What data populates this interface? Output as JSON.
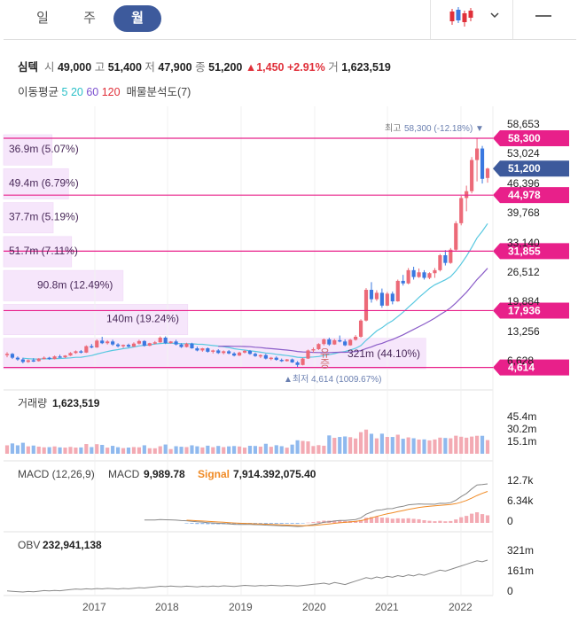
{
  "tabs": [
    {
      "label": "일",
      "active": false
    },
    {
      "label": "주",
      "active": false
    },
    {
      "label": "월",
      "active": true
    }
  ],
  "toolbar": {
    "chart_type_icon": "candlestick-icon",
    "dropdown_icon": "chevron-down-icon",
    "menu_icon": "minus-icon"
  },
  "stock": {
    "name": "심텍",
    "open_label": "시",
    "open": "49,000",
    "high_label": "고",
    "high": "51,400",
    "low_label": "저",
    "low": "47,900",
    "close_label": "종",
    "close": "51,200",
    "change_arrow": "▲",
    "change": "1,450",
    "change_pct": "+2.91%",
    "volume_label": "거",
    "volume": "1,623,519"
  },
  "moving_average": {
    "label": "이동평균",
    "periods": [
      {
        "value": "5",
        "color": "#2bc0c8"
      },
      {
        "value": "20",
        "color": "#2bc0c8"
      },
      {
        "value": "60",
        "color": "#7a4fd0"
      },
      {
        "value": "120",
        "color": "#e0303a"
      }
    ],
    "sales_dist": "매물분석도(7)"
  },
  "colors": {
    "up": "#ec6a78",
    "down": "#3a78e0",
    "marker": "#e8208a",
    "current": "#3d5a9c",
    "ma20": "#58c8e0",
    "ma60": "#8a5cc8",
    "profile": "#f6e6fb"
  },
  "chart_data": [
    {
      "type": "candlestick",
      "panel": "price",
      "x_tick_labels": [
        "2017",
        "2018",
        "2019",
        "2020",
        "2021",
        "2022"
      ],
      "y_tick_labels": [
        "58,653",
        "53,024",
        "46,396",
        "39,768",
        "33,140",
        "26,512",
        "19,884",
        "13,256",
        "6,628"
      ],
      "ylim": [
        3500,
        61000
      ],
      "high_marker": {
        "label": "최고",
        "value": "58,300",
        "pct": "(-12.18%)"
      },
      "low_marker": {
        "label": "최저",
        "value": "4,614",
        "pct": "(1009.67%)"
      },
      "price_tags": [
        {
          "value": 58300,
          "label": "58,300",
          "kind": "high"
        },
        {
          "value": 51200,
          "label": "51,200",
          "kind": "current"
        },
        {
          "value": 44978,
          "label": "44,978",
          "kind": "level"
        },
        {
          "value": 31855,
          "label": "31,855",
          "kind": "level"
        },
        {
          "value": 17936,
          "label": "17,936",
          "kind": "level"
        },
        {
          "value": 4614,
          "label": "4,614",
          "kind": "low"
        }
      ],
      "volume_profile": [
        {
          "label": "36.9m (5.07%)",
          "ratio": 0.0507
        },
        {
          "label": "49.4m (6.79%)",
          "ratio": 0.0679
        },
        {
          "label": "37.7m (5.19%)",
          "ratio": 0.0519
        },
        {
          "label": "51.7m (7.11%)",
          "ratio": 0.0711
        },
        {
          "label": "90.8m (12.49%)",
          "ratio": 0.1249
        },
        {
          "label": "140m (19.24%)",
          "ratio": 0.1924
        },
        {
          "label": "321m (44.10%)",
          "ratio": 0.441
        }
      ],
      "annotation": "유증",
      "candles": [
        [
          7600,
          8200,
          7000,
          7800
        ],
        [
          7800,
          8000,
          6600,
          6900
        ],
        [
          6900,
          7200,
          6200,
          6500
        ],
        [
          6500,
          6900,
          5600,
          5900
        ],
        [
          5900,
          6500,
          5700,
          6300
        ],
        [
          6300,
          6800,
          5900,
          6100
        ],
        [
          6100,
          6800,
          6000,
          6700
        ],
        [
          6700,
          7200,
          6500,
          6900
        ],
        [
          6900,
          7100,
          6400,
          6600
        ],
        [
          6600,
          7400,
          6500,
          7200
        ],
        [
          7200,
          7600,
          6900,
          7000
        ],
        [
          7000,
          7500,
          6800,
          7400
        ],
        [
          7400,
          8200,
          7300,
          8000
        ],
        [
          8000,
          8600,
          7800,
          8400
        ],
        [
          8400,
          8700,
          7900,
          8100
        ],
        [
          8100,
          9800,
          8000,
          9600
        ],
        [
          9600,
          10100,
          9100,
          9300
        ],
        [
          9300,
          11200,
          9200,
          10900
        ],
        [
          10900,
          11800,
          10100,
          10300
        ],
        [
          10300,
          11000,
          10000,
          10700
        ],
        [
          10700,
          11100,
          9700,
          10000
        ],
        [
          10000,
          10300,
          9300,
          9600
        ],
        [
          9600,
          10000,
          9200,
          9900
        ],
        [
          9900,
          10200,
          9300,
          9500
        ],
        [
          9500,
          10500,
          9400,
          10200
        ],
        [
          10200,
          11100,
          10000,
          10800
        ],
        [
          10800,
          11000,
          9500,
          9700
        ],
        [
          9700,
          10400,
          9600,
          10300
        ],
        [
          10300,
          10800,
          10000,
          10500
        ],
        [
          10500,
          11900,
          10400,
          11600
        ],
        [
          11600,
          11900,
          10100,
          10300
        ],
        [
          10300,
          10800,
          10200,
          10700
        ],
        [
          10700,
          11100,
          9800,
          10000
        ],
        [
          10000,
          10300,
          9200,
          9400
        ],
        [
          9400,
          10400,
          9300,
          10200
        ],
        [
          10200,
          10400,
          9000,
          9100
        ],
        [
          9100,
          9500,
          8400,
          8600
        ],
        [
          8600,
          9200,
          8300,
          9100
        ],
        [
          9100,
          9300,
          8100,
          8300
        ],
        [
          8300,
          8800,
          7900,
          8600
        ],
        [
          8600,
          8900,
          7800,
          8000
        ],
        [
          8000,
          8600,
          7700,
          8400
        ],
        [
          8400,
          8700,
          7700,
          7900
        ],
        [
          7900,
          8200,
          7200,
          7400
        ],
        [
          7400,
          8300,
          7300,
          8100
        ],
        [
          8100,
          8700,
          7900,
          8500
        ],
        [
          8500,
          8700,
          7600,
          7800
        ],
        [
          7800,
          8100,
          7100,
          7300
        ],
        [
          7300,
          7700,
          6800,
          7500
        ],
        [
          7500,
          7800,
          6500,
          6700
        ],
        [
          6700,
          7100,
          6300,
          6900
        ],
        [
          6900,
          7200,
          6200,
          6400
        ],
        [
          6400,
          6700,
          5900,
          6100
        ],
        [
          6100,
          6600,
          6000,
          6500
        ],
        [
          6500,
          6700,
          5700,
          5800
        ],
        [
          5800,
          6100,
          4614,
          5200
        ],
        [
          5200,
          6900,
          5100,
          6700
        ],
        [
          6700,
          8800,
          6600,
          8600
        ],
        [
          8600,
          9300,
          8100,
          8900
        ],
        [
          8900,
          10300,
          8700,
          10100
        ],
        [
          10100,
          11400,
          9800,
          11200
        ],
        [
          11200,
          11600,
          9700,
          10000
        ],
        [
          10000,
          11300,
          9900,
          11000
        ],
        [
          11000,
          12100,
          10500,
          10700
        ],
        [
          10700,
          11200,
          9600,
          9800
        ],
        [
          9800,
          11300,
          9700,
          11100
        ],
        [
          11100,
          12200,
          10900,
          11800
        ],
        [
          11800,
          15900,
          11600,
          15600
        ],
        [
          15600,
          23200,
          15400,
          22800
        ],
        [
          22800,
          24600,
          19800,
          20600
        ],
        [
          20600,
          22700,
          20200,
          22100
        ],
        [
          22100,
          23100,
          18600,
          19100
        ],
        [
          19100,
          22300,
          19000,
          21900
        ],
        [
          21900,
          22400,
          19400,
          20100
        ],
        [
          20100,
          25200,
          20000,
          24900
        ],
        [
          24900,
          26300,
          23800,
          24300
        ],
        [
          24300,
          27900,
          24100,
          27400
        ],
        [
          27400,
          28200,
          25200,
          25800
        ],
        [
          25800,
          27800,
          25600,
          26900
        ],
        [
          26900,
          27400,
          25200,
          25600
        ],
        [
          25600,
          26900,
          25300,
          26700
        ],
        [
          26700,
          27900,
          25600,
          27400
        ],
        [
          27400,
          31200,
          27100,
          30900
        ],
        [
          30900,
          32100,
          28500,
          29100
        ],
        [
          29100,
          32600,
          28900,
          32200
        ],
        [
          32200,
          38900,
          31900,
          38400
        ],
        [
          38400,
          44800,
          37900,
          44300
        ],
        [
          44300,
          47200,
          41200,
          45900
        ],
        [
          45900,
          53900,
          45400,
          53200
        ],
        [
          53200,
          58300,
          48200,
          55900
        ],
        [
          55900,
          56500,
          47700,
          48800
        ],
        [
          49000,
          51400,
          47900,
          51200
        ]
      ]
    },
    {
      "type": "bar",
      "panel": "volume",
      "title": "거래량",
      "current": "1,623,519",
      "y_tick_labels": [
        "45.4m",
        "30.2m",
        "15.1m"
      ],
      "ylim": [
        0,
        50000000
      ]
    },
    {
      "type": "line",
      "panel": "macd",
      "title": "MACD (12,26,9)",
      "macd_label": "MACD",
      "macd_value": "9,989.78",
      "signal_label": "Signal",
      "signal_value": "7,914.392,075.40",
      "y_tick_labels": [
        "12.7k",
        "6.34k",
        "0"
      ],
      "ylim": [
        0,
        14000
      ]
    },
    {
      "type": "line",
      "panel": "obv",
      "title": "OBV",
      "value": "232,941,138",
      "y_tick_labels": [
        "321m",
        "161m",
        "0"
      ],
      "ylim": [
        0,
        340000000
      ]
    }
  ]
}
